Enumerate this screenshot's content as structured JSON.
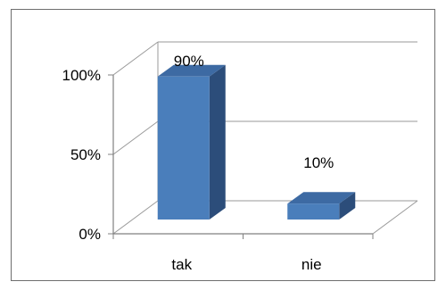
{
  "chart_data": {
    "type": "bar",
    "style": "3d-column",
    "categories": [
      "tak",
      "nie"
    ],
    "values": [
      90,
      10
    ],
    "data_labels": [
      "90%",
      "10%"
    ],
    "y_ticks": [
      "0%",
      "50%",
      "100%"
    ],
    "ylim": [
      0,
      100
    ],
    "grid": true,
    "legend": "none",
    "colors": {
      "bar_front": "#4a7ebb",
      "bar_side": "#2c4d7a",
      "bar_top": "#3d6aa3",
      "grid": "#9a9a9a"
    }
  }
}
